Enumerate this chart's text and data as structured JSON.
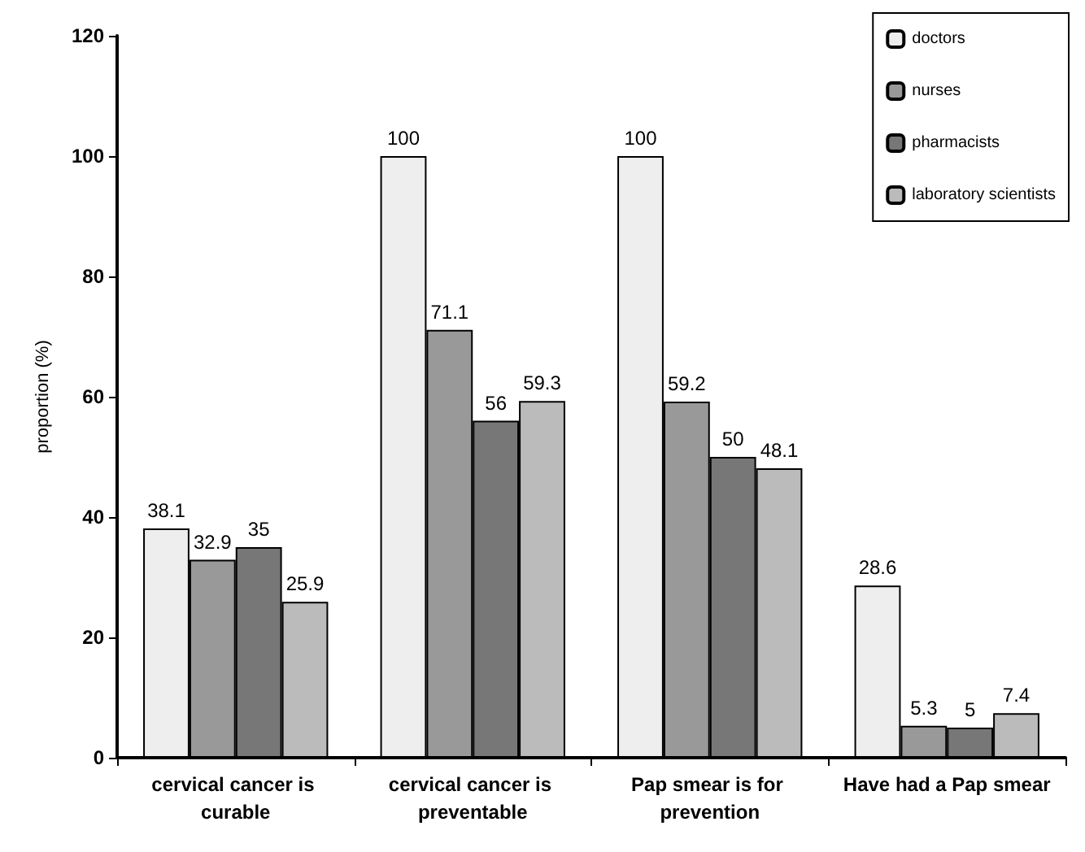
{
  "chart_data": {
    "type": "bar",
    "ylabel": "proportion (%)",
    "categories": [
      "cervical cancer is curable",
      "cervical cancer is preventable",
      "Pap smear is for prevention",
      "Have had a Pap smear"
    ],
    "series": [
      {
        "name": "doctors",
        "color": "#eeeeee",
        "values": [
          38.1,
          100,
          100,
          28.6
        ]
      },
      {
        "name": "nurses",
        "color": "#999999",
        "values": [
          32.9,
          71.1,
          59.2,
          5.3
        ]
      },
      {
        "name": "pharmacists",
        "color": "#777777",
        "values": [
          35,
          56,
          50,
          5
        ]
      },
      {
        "name": "laboratory scientists",
        "color": "#bbbbbb",
        "values": [
          25.9,
          59.3,
          48.1,
          7.4
        ]
      }
    ],
    "ylim": [
      0,
      120
    ],
    "yticks": [
      0,
      20,
      40,
      60,
      80,
      100,
      120
    ],
    "grid": false,
    "legend": "top right",
    "data_labels": true
  }
}
